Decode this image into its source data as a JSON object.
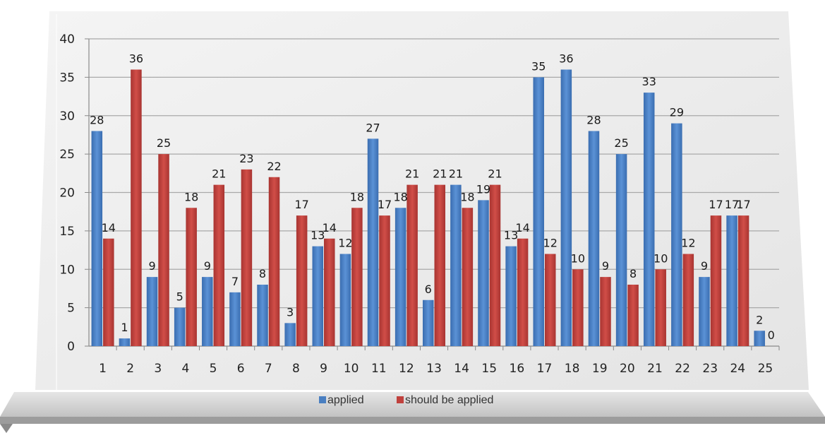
{
  "chart_data": {
    "type": "bar",
    "categories": [
      "1",
      "2",
      "3",
      "4",
      "5",
      "6",
      "7",
      "8",
      "9",
      "10",
      "11",
      "12",
      "13",
      "14",
      "15",
      "16",
      "17",
      "18",
      "19",
      "20",
      "21",
      "22",
      "23",
      "24",
      "25"
    ],
    "series": [
      {
        "name": "applied",
        "color": "#4a7fc1",
        "values": [
          28,
          1,
          9,
          5,
          9,
          7,
          8,
          3,
          13,
          12,
          27,
          18,
          6,
          21,
          19,
          13,
          35,
          36,
          28,
          25,
          33,
          29,
          9,
          17,
          2
        ]
      },
      {
        "name": "should be applied",
        "color": "#c0413d",
        "values": [
          14,
          36,
          25,
          18,
          21,
          23,
          22,
          17,
          14,
          18,
          17,
          21,
          21,
          18,
          21,
          14,
          12,
          10,
          9,
          8,
          10,
          12,
          17,
          17,
          0
        ]
      }
    ],
    "yticks": [
      "0",
      "5",
      "10",
      "15",
      "20",
      "25",
      "30",
      "35",
      "40"
    ],
    "ylim": [
      0,
      40
    ],
    "grid": true,
    "legend_position": "bottom",
    "title": "",
    "xlabel": "",
    "ylabel": ""
  }
}
